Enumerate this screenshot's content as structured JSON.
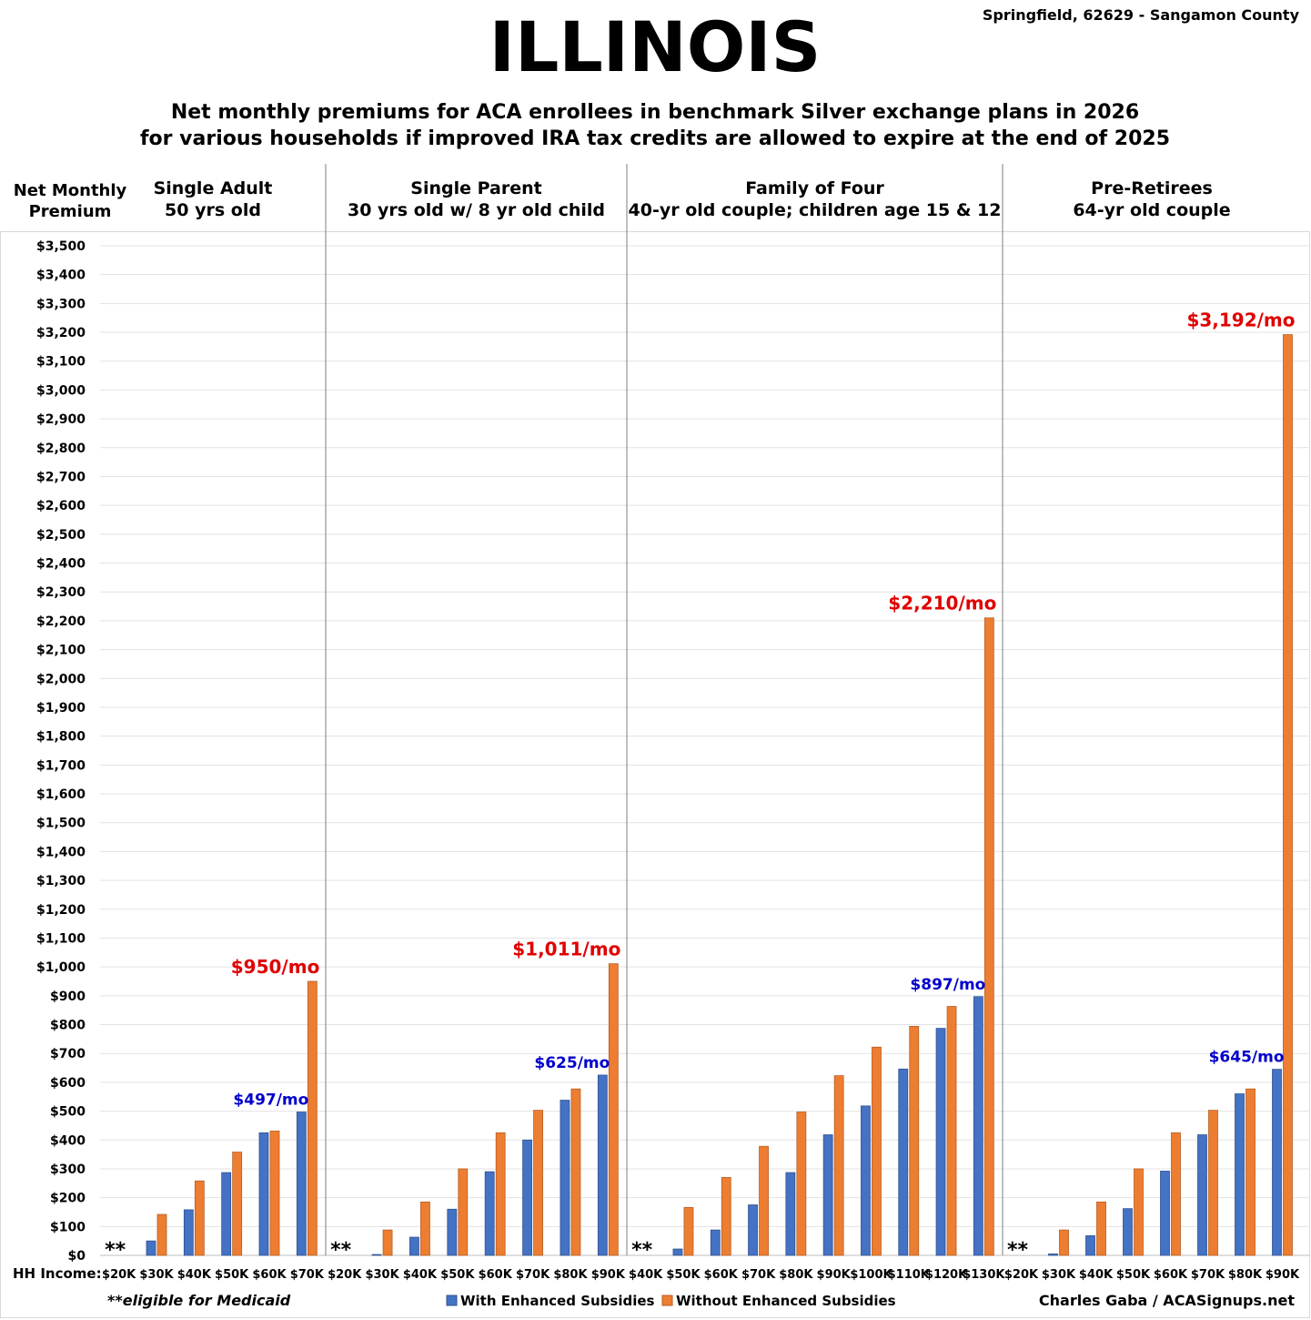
{
  "chart_data": {
    "type": "bar",
    "title": "ILLINOIS",
    "location": "Springfield, 62629 - Sangamon County",
    "subtitle_line1": "Net monthly premiums for ACA enrollees in benchmark Silver exchange plans in 2026",
    "subtitle_line2": "for various households if improved IRA tax credits are allowed to expire at the end of 2025",
    "ylabel_line1": "Net Monthly",
    "ylabel_line2": "Premium",
    "xlabel": "HH Income:",
    "ylim": [
      0,
      3500
    ],
    "yticks": [
      "$0",
      "$100",
      "$200",
      "$300",
      "$400",
      "$500",
      "$600",
      "$700",
      "$800",
      "$900",
      "$1,000",
      "$1,100",
      "$1,200",
      "$1,300",
      "$1,400",
      "$1,500",
      "$1,600",
      "$1,700",
      "$1,800",
      "$1,900",
      "$2,000",
      "$2,100",
      "$2,200",
      "$2,300",
      "$2,400",
      "$2,500",
      "$2,600",
      "$2,700",
      "$2,800",
      "$2,900",
      "$3,000",
      "$3,100",
      "$3,200",
      "$3,300",
      "$3,400",
      "$3,500"
    ],
    "grid": true,
    "legend_position": "bottom",
    "series_names": [
      "With Enhanced Subsidies",
      "Without Enhanced Subsidies"
    ],
    "series_colors": [
      "#4472c4",
      "#ed7d31"
    ],
    "panels": [
      {
        "title_line1": "Single Adult",
        "title_line2": "50 yrs old",
        "categories": [
          "$20K",
          "$30K",
          "$40K",
          "$50K",
          "$60K",
          "$70K"
        ],
        "with": [
          0,
          50,
          158,
          287,
          425,
          497
        ],
        "without": [
          0,
          142,
          258,
          358,
          431,
          950
        ],
        "medicaid_mark": "**",
        "with_label": "$497/mo",
        "without_label": "$950/mo"
      },
      {
        "title_line1": "Single Parent",
        "title_line2": "30 yrs old w/ 8 yr old child",
        "categories": [
          "$20K",
          "$30K",
          "$40K",
          "$50K",
          "$60K",
          "$70K",
          "$80K",
          "$90K"
        ],
        "with": [
          0,
          3,
          63,
          160,
          290,
          400,
          538,
          625
        ],
        "without": [
          0,
          88,
          185,
          300,
          425,
          503,
          577,
          1011
        ],
        "medicaid_mark": "**",
        "with_label": "$625/mo",
        "without_label": "$1,011/mo"
      },
      {
        "title_line1": "Family of Four",
        "title_line2": "40-yr old couple; children age 15 & 12",
        "categories": [
          "$40K",
          "$50K",
          "$60K",
          "$70K",
          "$80K",
          "$90K",
          "$100K",
          "$110K",
          "$120K",
          "$130K"
        ],
        "with": [
          0,
          22,
          88,
          175,
          287,
          418,
          518,
          646,
          787,
          897
        ],
        "without": [
          0,
          166,
          270,
          378,
          497,
          623,
          722,
          794,
          863,
          2210
        ],
        "medicaid_mark": "**",
        "with_label": "$897/mo",
        "without_label": "$2,210/mo"
      },
      {
        "title_line1": "Pre-Retirees",
        "title_line2": "64-yr old couple",
        "categories": [
          "$20K",
          "$30K",
          "$40K",
          "$50K",
          "$60K",
          "$70K",
          "$80K",
          "$90K"
        ],
        "with": [
          0,
          5,
          68,
          162,
          292,
          418,
          560,
          645
        ],
        "without": [
          0,
          88,
          185,
          300,
          425,
          503,
          577,
          3192
        ],
        "medicaid_mark": "**",
        "with_label": "$645/mo",
        "without_label": "$3,192/mo"
      }
    ],
    "footnote": "**eligible for Medicaid",
    "credit": "Charles Gaba / ACASignups.net"
  }
}
